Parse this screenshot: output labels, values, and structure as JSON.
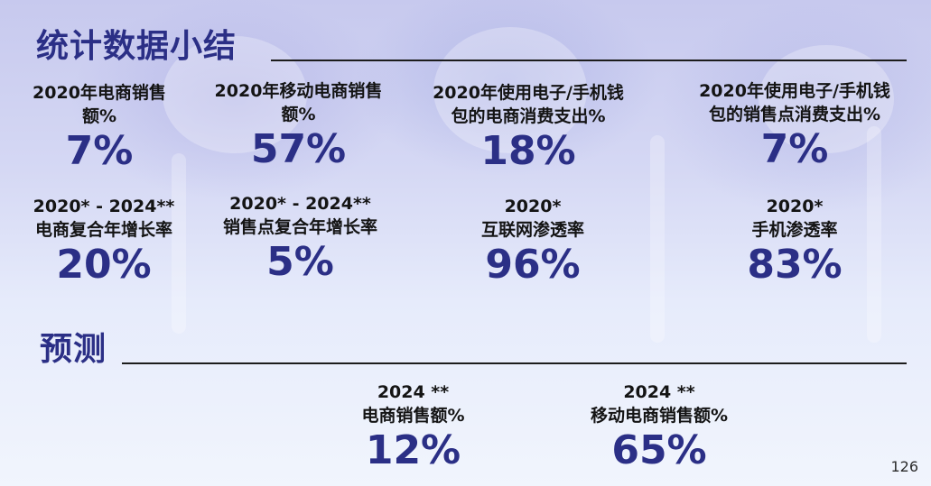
{
  "summary_title": "统计数据小结",
  "forecast_title": "预测",
  "stats": [
    {
      "label_lines": [
        "2020年电商销售",
        "额%"
      ],
      "value": "7%"
    },
    {
      "label_lines": [
        "2020年移动电商销售",
        "额%"
      ],
      "value": "57%"
    },
    {
      "label_lines": [
        "2020年使用电子/手机钱",
        "包的电商消费支出%"
      ],
      "value": "18%"
    },
    {
      "label_lines": [
        "2020年使用电子/手机钱",
        "包的销售点消费支出%"
      ],
      "value": "7%"
    },
    {
      "label_lines": [
        "2020* - 2024**",
        "电商复合年增长率"
      ],
      "value": "20%"
    },
    {
      "label_lines": [
        "2020* - 2024**",
        "销售点复合年增长率"
      ],
      "value": "5%"
    },
    {
      "label_lines": [
        "2020*",
        "互联网渗透率"
      ],
      "value": "96%"
    },
    {
      "label_lines": [
        "2020*",
        "手机渗透率"
      ],
      "value": "83%"
    }
  ],
  "forecast": [
    {
      "label_lines": [
        "2024 **",
        "电商销售额%"
      ],
      "value": "12%"
    },
    {
      "label_lines": [
        "2024 **",
        "移动电商销售额%"
      ],
      "value": "65%"
    }
  ],
  "page_number": "126"
}
